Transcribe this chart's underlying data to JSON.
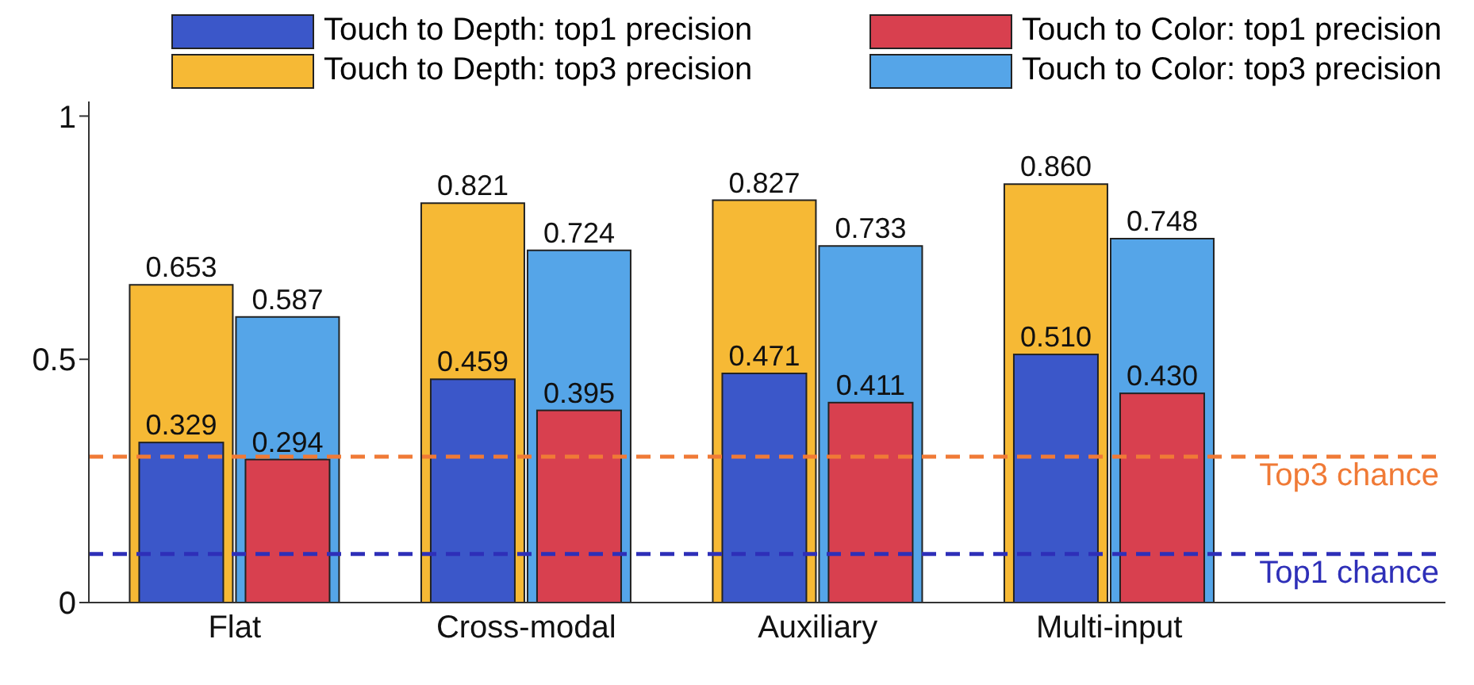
{
  "chart_data": {
    "type": "bar",
    "categories": [
      "Flat",
      "Cross-modal",
      "Auxiliary",
      "Multi-input"
    ],
    "series": [
      {
        "name": "Touch to Depth: top1 precision",
        "color": "#3b57c9",
        "values": [
          0.329,
          0.459,
          0.471,
          0.51
        ],
        "value_labels": [
          "0.329",
          "0.459",
          "0.471",
          "0.510"
        ]
      },
      {
        "name": "Touch to Color: top1 precision",
        "color": "#d8404f",
        "values": [
          0.294,
          0.395,
          0.411,
          0.43
        ],
        "value_labels": [
          "0.294",
          "0.395",
          "0.411",
          "0.430"
        ]
      },
      {
        "name": "Touch to Depth: top3 precision",
        "color": "#f6b935",
        "values": [
          0.653,
          0.821,
          0.827,
          0.86
        ],
        "value_labels": [
          "0.653",
          "0.821",
          "0.827",
          "0.860"
        ]
      },
      {
        "name": "Touch to Color: top3 precision",
        "color": "#55a5e8",
        "values": [
          0.587,
          0.724,
          0.733,
          0.748
        ],
        "value_labels": [
          "0.587",
          "0.724",
          "0.733",
          "0.748"
        ]
      }
    ],
    "ylim": [
      0,
      1.03
    ],
    "yticks": [
      0,
      0.5,
      1
    ],
    "grid": false,
    "legend": "top",
    "ref_lines": [
      {
        "axis": "y",
        "value": 0.3,
        "label": "Top3 chance",
        "color": "#f07a36",
        "line_style": "dashed"
      },
      {
        "axis": "y",
        "value": 0.1,
        "label": "Top1 chance",
        "color": "#2e2fb8",
        "line_style": "dashed"
      }
    ]
  }
}
